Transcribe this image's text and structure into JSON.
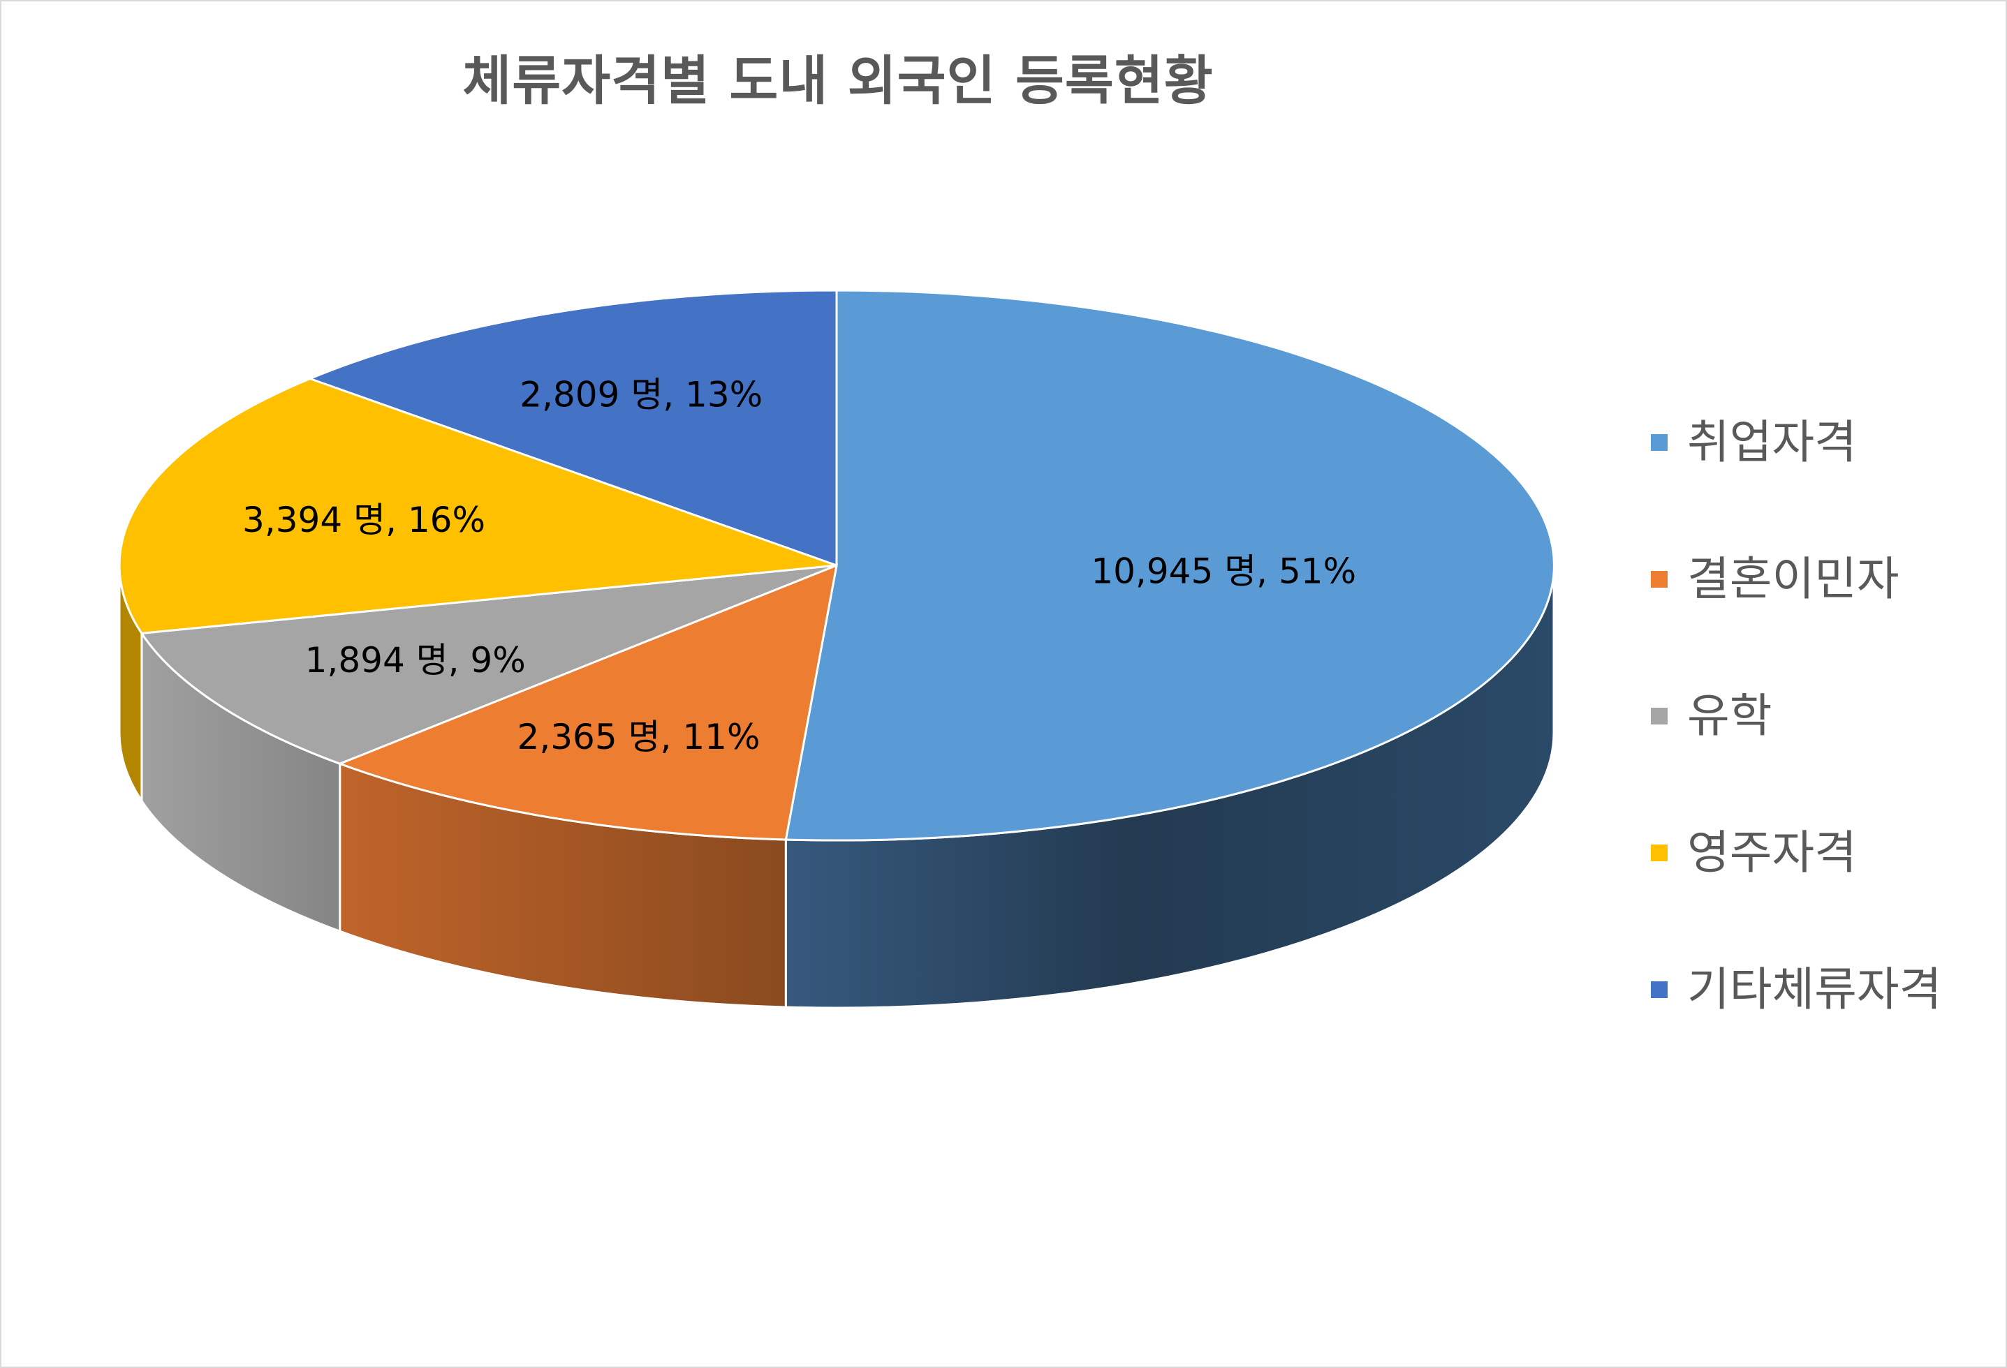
{
  "chart_data": {
    "type": "pie",
    "style": "3d",
    "title": "체류자격별 도내 외국인 등록현황",
    "slices": [
      {
        "name": "취업자격",
        "value": 10945,
        "percent": 51,
        "label": "10,945 명, 51%",
        "color": "#5b9bd5",
        "side_color": "#2a4a68"
      },
      {
        "name": "결혼이민자",
        "value": 2365,
        "percent": 11,
        "label": "2,365 명, 11%",
        "color": "#ed7d31",
        "side_color": "#9c4f1c"
      },
      {
        "name": "유학",
        "value": 1894,
        "percent": 9,
        "label": "1,894 명, 9%",
        "color": "#a5a5a5",
        "side_color": "#8a8a8a"
      },
      {
        "name": "영주자격",
        "value": 3394,
        "percent": 16,
        "label": "3,394 명, 16%",
        "color": "#ffc000",
        "side_color": "#b38600"
      },
      {
        "name": "기타체류자격",
        "value": 2809,
        "percent": 13,
        "label": "2,809 명, 13%",
        "color": "#4472c4",
        "side_color": "#2f4f88"
      }
    ],
    "legend_position": "right"
  }
}
